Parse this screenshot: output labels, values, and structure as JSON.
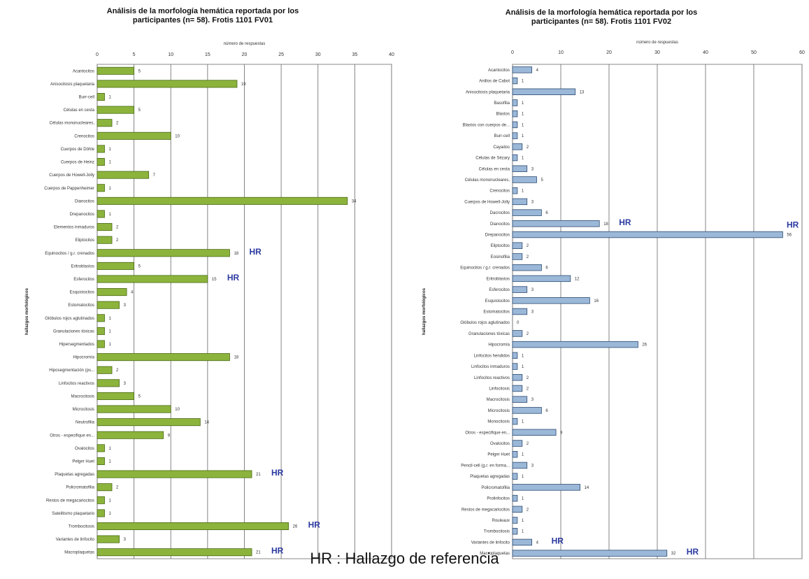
{
  "footer": "HR : Hallazgo de referencia",
  "chart_data": [
    {
      "type": "bar",
      "orientation": "horizontal",
      "title_line1": "Análisis de la morfología hemática reportada por los",
      "title_line2": "participantes (n= 58). Frotis 1101 FV01",
      "xlabel": "número de respuestas",
      "ylabel": "hallazgos morfológicos",
      "xlim": [
        0,
        40
      ],
      "xticks": [
        0,
        5,
        10,
        15,
        20,
        25,
        30,
        35,
        40
      ],
      "grid": true,
      "bar_color": "#8cb43c",
      "bar_edge": "#4a6a14",
      "categories": [
        "Acantocitos",
        "Anisocitosis plaquetaria",
        "Burr-cell",
        "Células en cesta",
        "Células mononucleares,",
        "Crenocitos",
        "Cuerpos de Döhle",
        "Cuerpos de Heinz",
        "Cuerpos de Howell-Jolly",
        "Cuerpos de Pappenheimer",
        "Dianocitos",
        "Drepanocitos",
        "Elementos inmaduros",
        "Eliptocitos",
        "Equinocitos / g.r. crenados",
        "Eritroblastos",
        "Esferocitos",
        "Esquistocitos",
        "Estomatocitos",
        "Glóbulos rojos aglutinados",
        "Granulaciones tóxicas",
        "Hipersegmentados",
        "Hipocromía",
        "Hiposegmentación (ps...",
        "Linfocitos reactivos",
        "Macrocitosis",
        "Microcitosis",
        "Neutrofilia",
        "Otros - especifique en...",
        "Ovalocitos",
        "Pelger Huet",
        "Plaquetas agregadas",
        "Policromatofilia",
        "Restos de megacariocitos",
        "Satelitismo plaquetario",
        "Trombocitosis",
        "Variantes de linfocito",
        "Macroplaquetas"
      ],
      "values": [
        5,
        19,
        1,
        5,
        2,
        10,
        1,
        1,
        7,
        1,
        34,
        1,
        2,
        2,
        18,
        5,
        15,
        4,
        3,
        1,
        1,
        1,
        18,
        2,
        3,
        5,
        10,
        14,
        9,
        1,
        1,
        21,
        2,
        1,
        1,
        26,
        3,
        21
      ],
      "annotations": [
        {
          "category": "Equinocitos / g.r. crenados",
          "text": "HR"
        },
        {
          "category": "Esferocitos",
          "text": "HR"
        },
        {
          "category": "Plaquetas agregadas",
          "text": "HR"
        },
        {
          "category": "Trombocitosis",
          "text": "HR"
        },
        {
          "category": "Macroplaquetas",
          "text": "HR"
        }
      ]
    },
    {
      "type": "bar",
      "orientation": "horizontal",
      "title_line1": "Análisis de la morfología hemática reportada por los",
      "title_line2": "participantes (n= 58). Frotis 1101 FV02",
      "xlabel": "número de respuestas",
      "ylabel": "hallazgos morfológicos",
      "xlim": [
        0,
        60
      ],
      "xticks": [
        0,
        10,
        20,
        30,
        40,
        50,
        60
      ],
      "grid": true,
      "bar_color": "#9bb8d8",
      "bar_edge": "#2c4a70",
      "categories": [
        "Acantocitos",
        "Anillos de Cabot",
        "Anisocitosis plaquetaria",
        "Basofilia",
        "Blastos",
        "Blastos con cuerpos de...",
        "Burr-cell",
        "Cayados",
        "Células de Sézary",
        "Células en cesta",
        "Células mononucleares,",
        "Crenocitos",
        "Cuerpos de Howell-Jolly",
        "Dacrocitos",
        "Dianocitos",
        "Drepanocitos",
        "Eliptocitos",
        "Eosinofilia",
        "Equinocitos / g.r. crenados",
        "Eritroblastos",
        "Esferocitos",
        "Esquistocitos",
        "Estomatocitos",
        "Glóbulos rojos aglutinados",
        "Granulaciones tóxicas",
        "Hipocromía",
        "Linfocitos hendidos",
        "Linfocitos inmaduros",
        "Linfocitos reactivos",
        "Linfocitosis",
        "Macrocitosis",
        "Microcitosis",
        "Monocitosis",
        "Otros - especifique en...",
        "Ovalocitos",
        "Pelger Huet",
        "Pencil-cell (g.r. en forma...",
        "Plaquetas agregadas",
        "Policromatofilia",
        "Prolinfocitos",
        "Restos de megacariocitos",
        "Rouleaux",
        "Trombocitosis",
        "Variantes de linfocito",
        "Macroplaquetas"
      ],
      "values": [
        4,
        1,
        13,
        1,
        1,
        1,
        1,
        2,
        1,
        3,
        5,
        1,
        3,
        6,
        18,
        56,
        2,
        2,
        6,
        12,
        3,
        16,
        3,
        0,
        2,
        26,
        1,
        1,
        2,
        2,
        3,
        6,
        1,
        9,
        2,
        1,
        3,
        1,
        14,
        1,
        2,
        1,
        1,
        4,
        32
      ],
      "annotations": [
        {
          "category": "Dianocitos",
          "text": "HR"
        },
        {
          "category": "Drepanocitos",
          "text": "HR"
        },
        {
          "category": "Variantes de linfocito",
          "text": "HR"
        },
        {
          "category": "Macroplaquetas",
          "text": "HR"
        }
      ]
    }
  ]
}
